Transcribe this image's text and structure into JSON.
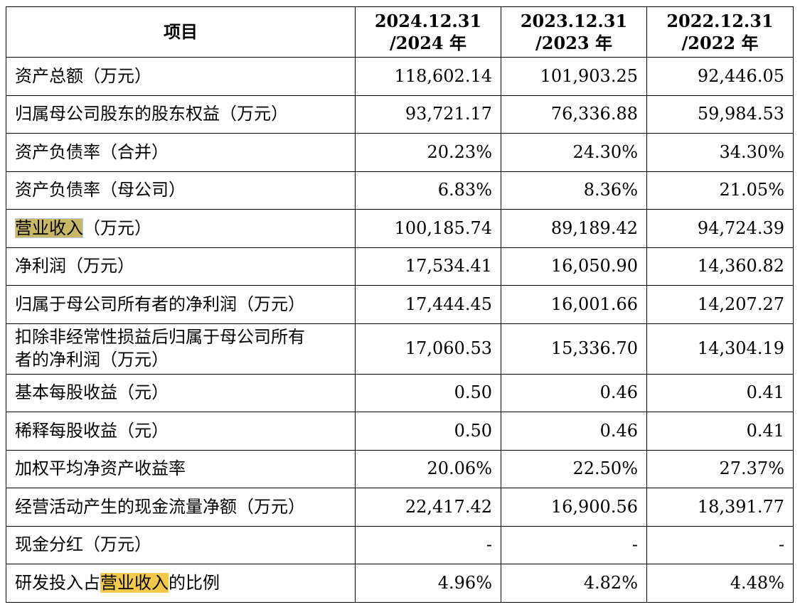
{
  "table": {
    "header": {
      "item": "项目",
      "col2024": {
        "line1": "2024.12.31",
        "line2": "/2024 年"
      },
      "col2023": {
        "line1": "2023.12.31",
        "line2": "/2023 年"
      },
      "col2022": {
        "line1": "2022.12.31",
        "line2": "/2022 年"
      }
    },
    "rows": [
      {
        "label": "资产总额（万元）",
        "v2024": "118,602.14",
        "v2023": "101,903.25",
        "v2022": "92,446.05"
      },
      {
        "label": "归属母公司股东的股东权益（万元）",
        "v2024": "93,721.17",
        "v2023": "76,336.88",
        "v2022": "59,984.53"
      },
      {
        "label": "资产负债率（合并）",
        "v2024": "20.23%",
        "v2023": "24.30%",
        "v2022": "34.30%"
      },
      {
        "label": "资产负债率（母公司）",
        "v2024": "6.83%",
        "v2023": "8.36%",
        "v2022": "21.05%"
      },
      {
        "label_highlight": "营业收入",
        "label_rest": "（万元）",
        "v2024": "100,185.74",
        "v2023": "89,189.42",
        "v2022": "94,724.39"
      },
      {
        "label": "净利润（万元）",
        "v2024": "17,534.41",
        "v2023": "16,050.90",
        "v2022": "14,360.82"
      },
      {
        "label": "归属于母公司所有者的净利润（万元）",
        "v2024": "17,444.45",
        "v2023": "16,001.66",
        "v2022": "14,207.27"
      },
      {
        "label_line1": "扣除非经常性损益后归属于母公司所有",
        "label_line2": "者的净利润（万元）",
        "v2024": "17,060.53",
        "v2023": "15,336.70",
        "v2022": "14,304.19"
      },
      {
        "label": "基本每股收益（元）",
        "v2024": "0.50",
        "v2023": "0.46",
        "v2022": "0.41"
      },
      {
        "label": "稀释每股收益（元）",
        "v2024": "0.50",
        "v2023": "0.46",
        "v2022": "0.41"
      },
      {
        "label": "加权平均净资产收益率",
        "v2024": "20.06%",
        "v2023": "22.50%",
        "v2022": "27.37%"
      },
      {
        "label": "经营活动产生的现金流量净额（万元）",
        "v2024": "22,417.42",
        "v2023": "16,900.56",
        "v2022": "18,391.77"
      },
      {
        "label": "现金分红（万元）",
        "v2024": "-",
        "v2023": "-",
        "v2022": "-"
      },
      {
        "label_pre": "研发投入占",
        "label_highlight": "营业收入",
        "label_post": "的比例",
        "v2024": "4.96%",
        "v2023": "4.82%",
        "v2022": "4.48%"
      }
    ]
  },
  "colors": {
    "highlight": "#f2c94c",
    "highlight_selected": "#c8b866",
    "border": "#000000"
  }
}
